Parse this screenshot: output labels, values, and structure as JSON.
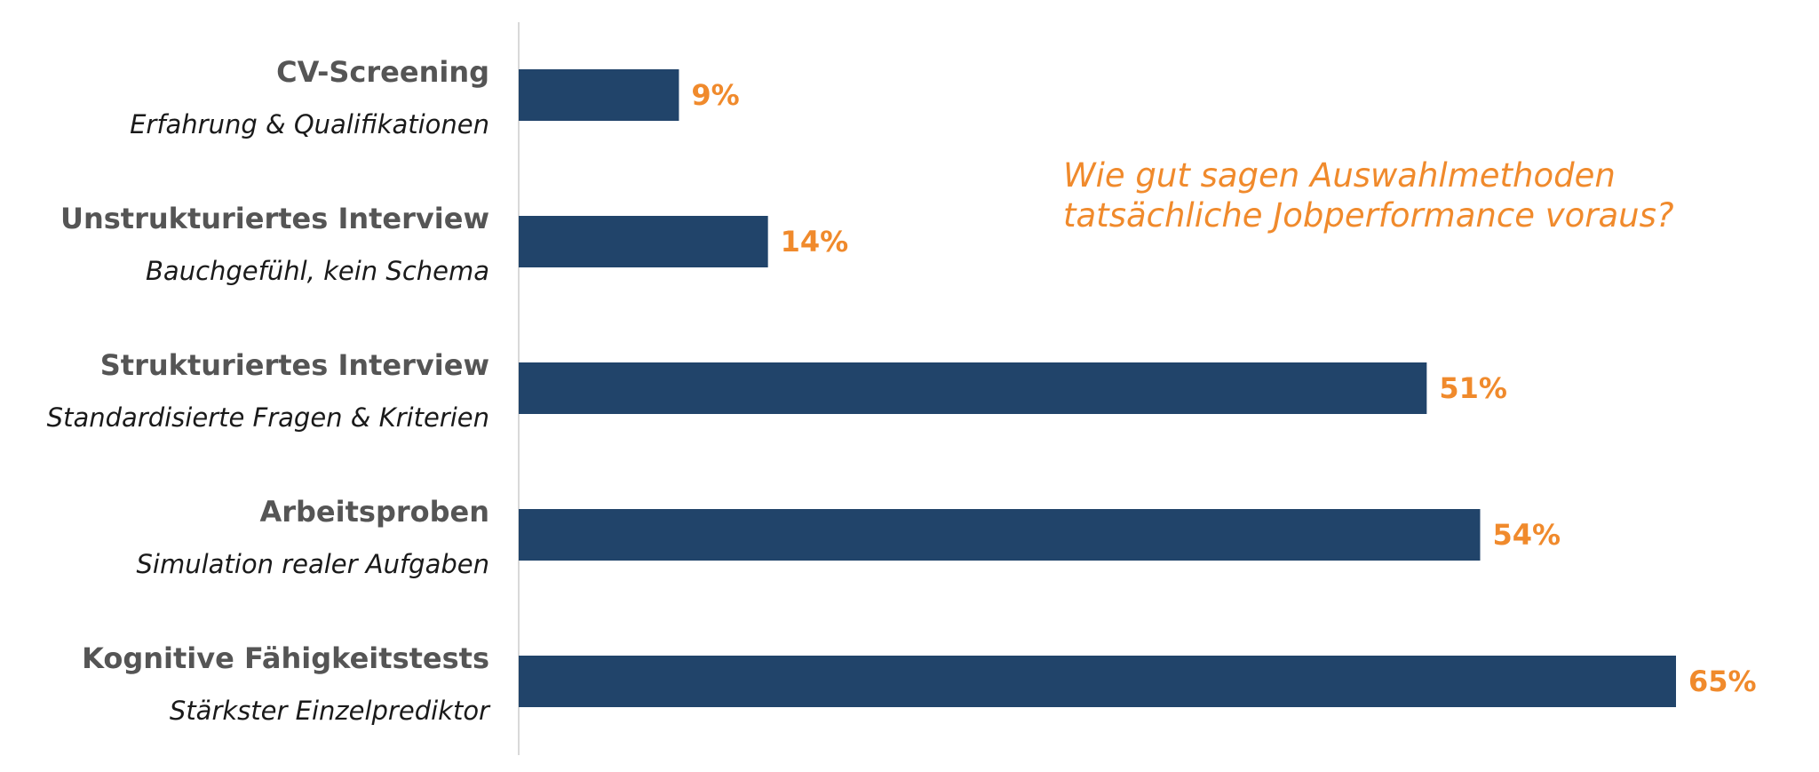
{
  "colors": {
    "bar": "#21446a",
    "accent": "#f08a2c",
    "axis": "#d9d9d9"
  },
  "chart_data": {
    "type": "bar",
    "orientation": "horizontal",
    "title": "",
    "xlabel": "",
    "ylabel": "",
    "xlim": [
      0,
      65
    ],
    "grid": false,
    "legend": "none",
    "annotation": [
      "Wie gut sagen Auswahlmethoden",
      "tatsächliche Jobperformance voraus?"
    ],
    "categories": [
      "CV-Screening",
      "Unstrukturiertes Interview",
      "Strukturiertes Interview",
      "Arbeitsproben",
      "Kognitive Fähigkeitstests"
    ],
    "subtitles": [
      "Erfahrung & Qualifikationen",
      "Bauchgefühl, kein Schema",
      "Standardisierte Fragen & Kriterien",
      "Simulation realer Aufgaben",
      "Stärkster Einzelprediktor"
    ],
    "values": [
      9,
      14,
      51,
      54,
      65
    ],
    "value_labels": [
      "9%",
      "14%",
      "51%",
      "54%",
      "65%"
    ]
  }
}
